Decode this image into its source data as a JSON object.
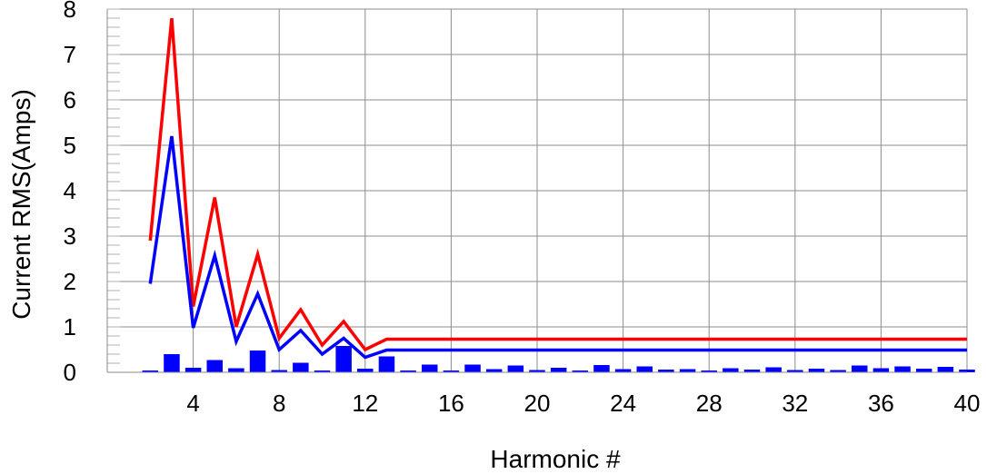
{
  "chart_data": {
    "type": "bar",
    "title": "",
    "xlabel": "Harmonic #",
    "ylabel": "Current RMS(Amps)",
    "xlim": [
      0,
      40
    ],
    "ylim": [
      0,
      8
    ],
    "x_ticks": [
      4,
      8,
      12,
      16,
      20,
      24,
      28,
      32,
      36,
      40
    ],
    "y_ticks": [
      0,
      1,
      2,
      3,
      4,
      5,
      6,
      7,
      8
    ],
    "grid": true,
    "legend": "none",
    "colors": {
      "bars": "#0000ff",
      "limit_upper": "#ff0000",
      "limit_lower": "#0000ff",
      "grid": "#8c8c8c"
    },
    "series": [
      {
        "kind": "bar",
        "x": [
          2,
          3,
          4,
          5,
          6,
          7,
          8,
          9,
          10,
          11,
          12,
          13,
          14,
          15,
          16,
          17,
          18,
          19,
          20,
          21,
          22,
          23,
          24,
          25,
          26,
          27,
          28,
          29,
          30,
          31,
          32,
          33,
          34,
          35,
          36,
          37,
          38,
          39,
          40
        ],
        "values": [
          0.02,
          0.4,
          0.1,
          0.27,
          0.09,
          0.48,
          0.05,
          0.21,
          0.04,
          0.58,
          0.08,
          0.35,
          0.04,
          0.17,
          0.03,
          0.17,
          0.07,
          0.15,
          0.05,
          0.1,
          0.04,
          0.16,
          0.07,
          0.13,
          0.06,
          0.07,
          0.03,
          0.09,
          0.06,
          0.11,
          0.05,
          0.08,
          0.05,
          0.15,
          0.09,
          0.13,
          0.08,
          0.12,
          0.06
        ]
      },
      {
        "kind": "line",
        "color": "#ff0000",
        "x": [
          2,
          3,
          4,
          5,
          6,
          7,
          8,
          9,
          10,
          11,
          12,
          13,
          40
        ],
        "values": [
          2.9,
          7.8,
          1.45,
          3.85,
          1.0,
          2.6,
          0.75,
          1.38,
          0.6,
          1.12,
          0.5,
          0.73,
          0.73
        ]
      },
      {
        "kind": "line",
        "color": "#0000ff",
        "x": [
          2,
          3,
          4,
          5,
          6,
          7,
          8,
          9,
          10,
          11,
          12,
          13,
          40
        ],
        "values": [
          1.95,
          5.2,
          0.98,
          2.57,
          0.68,
          1.73,
          0.5,
          0.92,
          0.4,
          0.75,
          0.33,
          0.49,
          0.49
        ]
      }
    ]
  }
}
